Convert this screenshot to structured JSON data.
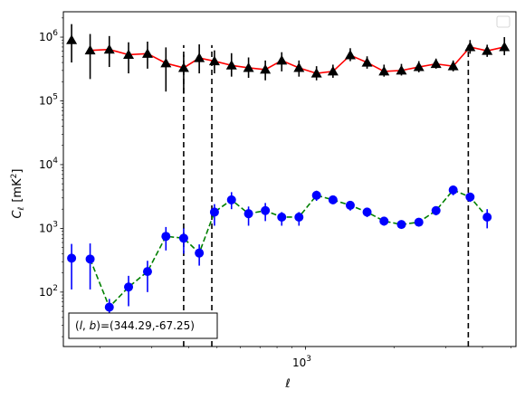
{
  "chart_data": {
    "type": "scatter",
    "xlabel": "ℓ",
    "ylabel_main": "C",
    "ylabel_sub": "ℓ",
    "ylabel_unit": "[mK",
    "ylabel_unit_sup": "2",
    "ylabel_unit_close": "]",
    "xscale": "log",
    "yscale": "log",
    "xlim": [
      150,
      5200
    ],
    "ylim": [
      14,
      2500000
    ],
    "x_tick_label": {
      "value": 1000,
      "base": "10",
      "exp": "3"
    },
    "y_tick_labels": [
      {
        "value": 100,
        "base": "10",
        "exp": "2"
      },
      {
        "value": 1000,
        "base": "10",
        "exp": "3"
      },
      {
        "value": 10000,
        "base": "10",
        "exp": "4"
      },
      {
        "value": 100000,
        "base": "10",
        "exp": "5"
      },
      {
        "value": 1000000,
        "base": "10",
        "exp": "6"
      }
    ],
    "annotation": "(l, b)=(344.29,-67.25)",
    "annotation_parts": {
      "open": "(",
      "l": "l",
      "sep": ", ",
      "b": "b",
      "values": ")=(344.29,-67.25)"
    },
    "vlines_x": [
      385,
      480,
      3580
    ],
    "legend": "top-right, empty",
    "grid": false,
    "series": [
      {
        "marker": "triangle",
        "marker_color": "#000000",
        "line_color": "#ff0000",
        "line_style": "solid",
        "connect_from_index": 1,
        "x": [
          160,
          185,
          215,
          250,
          290,
          335,
          385,
          435,
          490,
          560,
          640,
          730,
          830,
          950,
          1090,
          1240,
          1420,
          1620,
          1850,
          2120,
          2430,
          2780,
          3180,
          3630,
          4150,
          4750
        ],
        "y": [
          900000,
          620000,
          640000,
          530000,
          550000,
          390000,
          330000,
          470000,
          420000,
          360000,
          330000,
          310000,
          430000,
          330000,
          270000,
          290000,
          520000,
          400000,
          290000,
          300000,
          340000,
          380000,
          350000,
          700000,
          610000,
          700000
        ],
        "yerr_low": [
          500000,
          400000,
          300000,
          260000,
          230000,
          250000,
          200000,
          200000,
          150000,
          120000,
          100000,
          100000,
          140000,
          90000,
          60000,
          60000,
          100000,
          80000,
          50000,
          50000,
          60000,
          60000,
          60000,
          150000,
          120000,
          180000
        ],
        "yerr_high": [
          700000,
          500000,
          400000,
          300000,
          300000,
          300000,
          200000,
          300000,
          200000,
          200000,
          150000,
          120000,
          150000,
          100000,
          80000,
          80000,
          150000,
          100000,
          80000,
          80000,
          80000,
          80000,
          80000,
          200000,
          150000,
          300000
        ]
      },
      {
        "marker": "circle",
        "marker_color": "#0000ff",
        "line_color": "#008000",
        "line_style": "dashed",
        "connect_from_index": 1,
        "x": [
          160,
          185,
          215,
          250,
          290,
          335,
          385,
          435,
          490,
          560,
          640,
          730,
          830,
          950,
          1090,
          1240,
          1420,
          1620,
          1850,
          2120,
          2430,
          2780,
          3180,
          3630,
          4150,
          4750
        ],
        "y": [
          340,
          330,
          58,
          120,
          210,
          750,
          700,
          410,
          1800,
          2800,
          1700,
          1900,
          1500,
          1500,
          3300,
          2800,
          2300,
          1800,
          1300,
          1150,
          1250,
          1900,
          4000,
          3100,
          1500,
          null
        ],
        "yerr_low": [
          230,
          220,
          15,
          60,
          110,
          300,
          300,
          150,
          700,
          800,
          600,
          600,
          400,
          400,
          600,
          400,
          400,
          300,
          200,
          150,
          150,
          300,
          700,
          500,
          500,
          null
        ],
        "yerr_high": [
          230,
          250,
          20,
          60,
          100,
          300,
          300,
          150,
          600,
          900,
          500,
          600,
          300,
          300,
          600,
          400,
          400,
          300,
          200,
          150,
          150,
          300,
          700,
          500,
          500,
          null
        ]
      }
    ]
  }
}
